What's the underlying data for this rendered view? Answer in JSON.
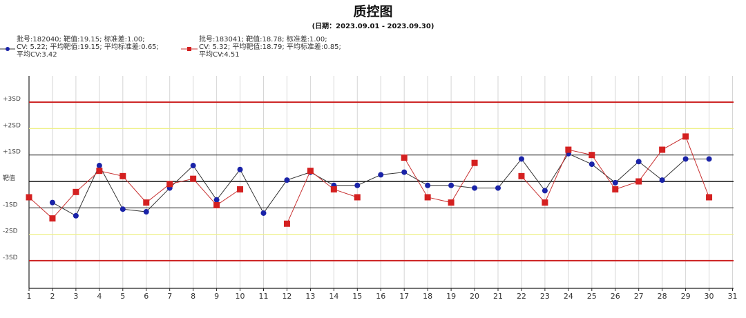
{
  "chart_data": {
    "type": "line",
    "title": "质控图",
    "subtitle": "(日期：2023.09.01 - 2023.09.30)",
    "x_ticks": [
      "1",
      "2",
      "3",
      "4",
      "5",
      "6",
      "7",
      "8",
      "9",
      "10",
      "11",
      "12",
      "13",
      "14",
      "15",
      "16",
      "17",
      "18",
      "19",
      "20",
      "21",
      "22",
      "23",
      "24",
      "25",
      "26",
      "27",
      "28",
      "29",
      "30",
      "31"
    ],
    "xlim": [
      1,
      31
    ],
    "ylim": [
      -4,
      4
    ],
    "y_levels": [
      {
        "label": "+3SD",
        "value": 3,
        "color": "#cc1f1f"
      },
      {
        "label": "+2SD",
        "value": 2,
        "color": "#eef088"
      },
      {
        "label": "+1SD",
        "value": 1,
        "color": "#333333"
      },
      {
        "label": "靶值",
        "value": 0,
        "color": "#111111"
      },
      {
        "label": "-1SD",
        "value": -1,
        "color": "#333333"
      },
      {
        "label": "-2SD",
        "value": -2,
        "color": "#eef088"
      },
      {
        "label": "-3SD",
        "value": -3,
        "color": "#cc1f1f"
      }
    ],
    "series": [
      {
        "legend_lines": [
          "批号:182040; 靶值:19.15; 标准差:1.00;",
          "CV:  5.22;  平均靶值:19.15; 平均标准差:0.65;",
          "平均CV:3.42"
        ],
        "marker": "circle",
        "color": "#1a23a8",
        "line_color": "#333333",
        "x": [
          2,
          3,
          4,
          5,
          6,
          7,
          8,
          9,
          10,
          11,
          12,
          13,
          14,
          15,
          16,
          17,
          18,
          19,
          20,
          21,
          22,
          23,
          24,
          25,
          26,
          27,
          28,
          29,
          30
        ],
        "y": [
          -0.8,
          -1.3,
          0.6,
          -1.05,
          -1.15,
          -0.25,
          0.6,
          -0.7,
          0.45,
          -1.2,
          0.05,
          0.35,
          -0.15,
          -0.15,
          0.25,
          0.35,
          -0.15,
          -0.15,
          -0.25,
          -0.25,
          0.85,
          -0.35,
          1.05,
          0.65,
          -0.05,
          0.75,
          0.05,
          0.85,
          0.85
        ]
      },
      {
        "legend_lines": [
          "批号:183041; 靶值:18.78; 标准差:1.00;",
          "CV:  5.32;  平均靶值:18.79; 平均标准差:0.85;",
          "平均CV:4.51"
        ],
        "marker": "square",
        "color": "#d42020",
        "line_color": "#c83232",
        "x": [
          1,
          2,
          3,
          4,
          5,
          6,
          7,
          8,
          9,
          10,
          11,
          12,
          13,
          14,
          15,
          16,
          17,
          18,
          19,
          20,
          21,
          22,
          23,
          24,
          25,
          26,
          27,
          28,
          29,
          30
        ],
        "y": [
          -0.6,
          -1.4,
          -0.4,
          0.4,
          0.2,
          -0.8,
          -0.1,
          0.1,
          -0.9,
          -0.3,
          null,
          -1.6,
          0.4,
          -0.3,
          -0.6,
          null,
          0.9,
          -0.6,
          -0.8,
          0.7,
          null,
          0.2,
          -0.8,
          1.2,
          1.0,
          -0.3,
          0.0,
          1.2,
          1.7,
          -0.6
        ]
      }
    ],
    "grid": "vertical"
  }
}
